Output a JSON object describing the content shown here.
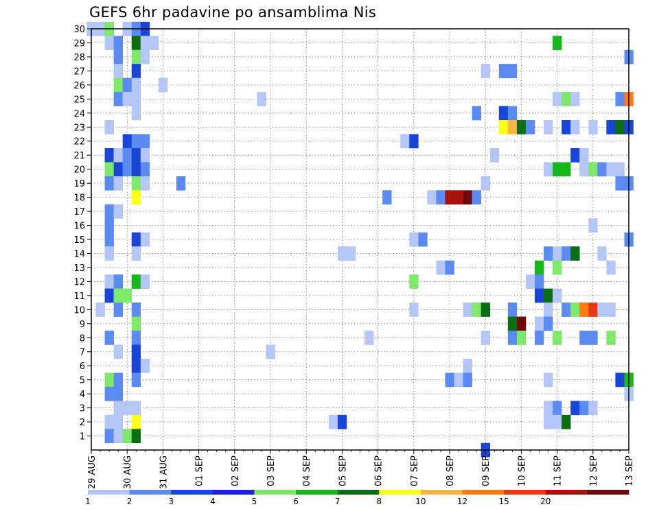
{
  "title": "GEFS 6hr padavine po ansamblima Nis",
  "chart_data": {
    "type": "heatmap",
    "title": "GEFS 6hr padavine po ansamblima Nis",
    "xlabel": "",
    "ylabel": "",
    "x_range_steps": [
      0,
      60
    ],
    "y_range": [
      0,
      30
    ],
    "x_ticks": [
      {
        "step": 0,
        "label": "29 AUG"
      },
      {
        "step": 4,
        "label": "30 AUG"
      },
      {
        "step": 8,
        "label": "31 AUG"
      },
      {
        "step": 12,
        "label": "01 SEP"
      },
      {
        "step": 16,
        "label": "02 SEP"
      },
      {
        "step": 20,
        "label": "03 SEP"
      },
      {
        "step": 24,
        "label": "04 SEP"
      },
      {
        "step": 28,
        "label": "05 SEP"
      },
      {
        "step": 32,
        "label": "06 SEP"
      },
      {
        "step": 36,
        "label": "07 SEP"
      },
      {
        "step": 40,
        "label": "08 SEP"
      },
      {
        "step": 44,
        "label": "09 SEP"
      },
      {
        "step": 48,
        "label": "10 SEP"
      },
      {
        "step": 52,
        "label": "11 SEP"
      },
      {
        "step": 56,
        "label": "12 SEP"
      },
      {
        "step": 60,
        "label": "13 SEP"
      }
    ],
    "y_ticks": [
      1,
      2,
      3,
      4,
      5,
      6,
      7,
      8,
      9,
      10,
      11,
      12,
      13,
      14,
      15,
      16,
      17,
      18,
      19,
      20,
      21,
      22,
      23,
      24,
      25,
      26,
      27,
      28,
      29,
      30
    ],
    "colorbar": {
      "labels": [
        "1",
        "2",
        "3",
        "4",
        "5",
        "6",
        "7",
        "8",
        "10",
        "12",
        "15",
        "20"
      ],
      "colors": [
        "#b3c6f5",
        "#5b8af0",
        "#1a46d8",
        "#1f1fd0",
        "#7de86a",
        "#16b81c",
        "#0b6e12",
        "#ffff14",
        "#ffb340",
        "#ff7a14",
        "#e83a14",
        "#a8120e",
        "#6e0a0a"
      ],
      "boundaries": [
        1,
        2,
        3,
        4,
        5,
        6,
        7,
        8,
        10,
        12,
        15,
        20
      ]
    },
    "cells_comment": "each cell: [member, step(6h from 29 AUG 00z), color class 0-12 (index into colorbar.colors)]",
    "cells": [
      [
        30,
        0,
        0
      ],
      [
        30,
        1,
        0
      ],
      [
        30,
        2,
        4
      ],
      [
        30,
        4,
        0
      ],
      [
        30,
        5,
        1
      ],
      [
        30,
        6,
        2
      ],
      [
        29,
        2,
        0
      ],
      [
        29,
        3,
        1
      ],
      [
        29,
        5,
        6
      ],
      [
        29,
        6,
        0
      ],
      [
        29,
        7,
        0
      ],
      [
        29,
        52,
        5
      ],
      [
        28,
        3,
        1
      ],
      [
        28,
        5,
        4
      ],
      [
        28,
        6,
        0
      ],
      [
        28,
        60,
        1
      ],
      [
        27,
        3,
        0
      ],
      [
        27,
        5,
        2
      ],
      [
        27,
        44,
        0
      ],
      [
        27,
        46,
        1
      ],
      [
        27,
        47,
        1
      ],
      [
        26,
        3,
        4
      ],
      [
        26,
        4,
        1
      ],
      [
        26,
        5,
        0
      ],
      [
        26,
        8,
        0
      ],
      [
        25,
        3,
        1
      ],
      [
        25,
        4,
        0
      ],
      [
        25,
        5,
        0
      ],
      [
        25,
        19,
        0
      ],
      [
        25,
        52,
        0
      ],
      [
        25,
        53,
        4
      ],
      [
        25,
        54,
        0
      ],
      [
        25,
        59,
        1
      ],
      [
        25,
        60,
        9
      ],
      [
        24,
        5,
        0
      ],
      [
        24,
        43,
        1
      ],
      [
        24,
        46,
        2
      ],
      [
        24,
        47,
        1
      ],
      [
        23,
        2,
        0
      ],
      [
        23,
        46,
        7
      ],
      [
        23,
        47,
        8
      ],
      [
        23,
        48,
        6
      ],
      [
        23,
        49,
        1
      ],
      [
        23,
        51,
        0
      ],
      [
        23,
        53,
        2
      ],
      [
        23,
        54,
        0
      ],
      [
        23,
        56,
        0
      ],
      [
        23,
        58,
        2
      ],
      [
        23,
        59,
        6
      ],
      [
        23,
        60,
        2
      ],
      [
        22,
        4,
        2
      ],
      [
        22,
        5,
        1
      ],
      [
        22,
        6,
        1
      ],
      [
        22,
        35,
        0
      ],
      [
        22,
        36,
        2
      ],
      [
        21,
        2,
        2
      ],
      [
        21,
        3,
        0
      ],
      [
        21,
        4,
        1
      ],
      [
        21,
        5,
        2
      ],
      [
        21,
        6,
        0
      ],
      [
        21,
        45,
        0
      ],
      [
        21,
        54,
        2
      ],
      [
        21,
        55,
        0
      ],
      [
        20,
        2,
        4
      ],
      [
        20,
        3,
        2
      ],
      [
        20,
        4,
        1
      ],
      [
        20,
        5,
        2
      ],
      [
        20,
        6,
        1
      ],
      [
        20,
        51,
        0
      ],
      [
        20,
        52,
        5
      ],
      [
        20,
        53,
        5
      ],
      [
        20,
        55,
        0
      ],
      [
        20,
        56,
        4
      ],
      [
        20,
        57,
        1
      ],
      [
        20,
        58,
        0
      ],
      [
        20,
        59,
        0
      ],
      [
        19,
        2,
        1
      ],
      [
        19,
        3,
        0
      ],
      [
        19,
        5,
        4
      ],
      [
        19,
        6,
        0
      ],
      [
        19,
        10,
        1
      ],
      [
        19,
        44,
        0
      ],
      [
        19,
        59,
        1
      ],
      [
        19,
        60,
        1
      ],
      [
        18,
        5,
        7
      ],
      [
        18,
        33,
        1
      ],
      [
        18,
        38,
        0
      ],
      [
        18,
        39,
        1
      ],
      [
        18,
        40,
        11
      ],
      [
        18,
        41,
        11
      ],
      [
        18,
        42,
        12
      ],
      [
        18,
        43,
        1
      ],
      [
        17,
        2,
        1
      ],
      [
        17,
        3,
        0
      ],
      [
        16,
        2,
        1
      ],
      [
        16,
        56,
        0
      ],
      [
        15,
        2,
        1
      ],
      [
        15,
        5,
        2
      ],
      [
        15,
        6,
        0
      ],
      [
        15,
        36,
        0
      ],
      [
        15,
        37,
        1
      ],
      [
        15,
        60,
        1
      ],
      [
        14,
        2,
        0
      ],
      [
        14,
        5,
        0
      ],
      [
        14,
        28,
        0
      ],
      [
        14,
        29,
        0
      ],
      [
        14,
        51,
        1
      ],
      [
        14,
        52,
        0
      ],
      [
        14,
        53,
        1
      ],
      [
        14,
        54,
        6
      ],
      [
        14,
        57,
        0
      ],
      [
        13,
        39,
        0
      ],
      [
        13,
        40,
        1
      ],
      [
        13,
        50,
        5
      ],
      [
        13,
        52,
        4
      ],
      [
        13,
        58,
        0
      ],
      [
        12,
        2,
        0
      ],
      [
        12,
        3,
        1
      ],
      [
        12,
        5,
        5
      ],
      [
        12,
        6,
        0
      ],
      [
        12,
        36,
        4
      ],
      [
        12,
        49,
        0
      ],
      [
        12,
        50,
        1
      ],
      [
        11,
        2,
        2
      ],
      [
        11,
        3,
        4
      ],
      [
        11,
        4,
        4
      ],
      [
        11,
        50,
        2
      ],
      [
        11,
        51,
        6
      ],
      [
        11,
        52,
        0
      ],
      [
        10,
        1,
        0
      ],
      [
        10,
        3,
        1
      ],
      [
        10,
        5,
        1
      ],
      [
        10,
        36,
        0
      ],
      [
        10,
        42,
        0
      ],
      [
        10,
        43,
        4
      ],
      [
        10,
        44,
        6
      ],
      [
        10,
        47,
        1
      ],
      [
        10,
        51,
        0
      ],
      [
        10,
        53,
        1
      ],
      [
        10,
        54,
        4
      ],
      [
        10,
        55,
        9
      ],
      [
        10,
        56,
        10
      ],
      [
        10,
        57,
        0
      ],
      [
        10,
        58,
        0
      ],
      [
        9,
        5,
        4
      ],
      [
        9,
        47,
        6
      ],
      [
        9,
        48,
        12
      ],
      [
        9,
        50,
        0
      ],
      [
        9,
        51,
        1
      ],
      [
        8,
        2,
        1
      ],
      [
        8,
        5,
        1
      ],
      [
        8,
        31,
        0
      ],
      [
        8,
        44,
        0
      ],
      [
        8,
        47,
        1
      ],
      [
        8,
        48,
        4
      ],
      [
        8,
        50,
        1
      ],
      [
        8,
        52,
        4
      ],
      [
        8,
        55,
        1
      ],
      [
        8,
        56,
        1
      ],
      [
        8,
        58,
        4
      ],
      [
        7,
        3,
        0
      ],
      [
        7,
        5,
        2
      ],
      [
        7,
        20,
        0
      ],
      [
        6,
        5,
        2
      ],
      [
        6,
        6,
        0
      ],
      [
        6,
        42,
        0
      ],
      [
        5,
        2,
        4
      ],
      [
        5,
        3,
        1
      ],
      [
        5,
        5,
        1
      ],
      [
        5,
        40,
        1
      ],
      [
        5,
        41,
        0
      ],
      [
        5,
        42,
        1
      ],
      [
        5,
        51,
        0
      ],
      [
        5,
        59,
        2
      ],
      [
        5,
        60,
        5
      ],
      [
        4,
        2,
        1
      ],
      [
        4,
        3,
        1
      ],
      [
        4,
        60,
        0
      ],
      [
        3,
        3,
        0
      ],
      [
        3,
        4,
        0
      ],
      [
        3,
        5,
        0
      ],
      [
        3,
        51,
        0
      ],
      [
        3,
        52,
        1
      ],
      [
        3,
        54,
        2
      ],
      [
        3,
        55,
        1
      ],
      [
        3,
        56,
        0
      ],
      [
        2,
        2,
        0
      ],
      [
        2,
        3,
        0
      ],
      [
        2,
        5,
        7
      ],
      [
        2,
        27,
        0
      ],
      [
        2,
        28,
        2
      ],
      [
        2,
        51,
        0
      ],
      [
        2,
        52,
        0
      ],
      [
        2,
        53,
        6
      ],
      [
        1,
        2,
        1
      ],
      [
        1,
        3,
        0
      ],
      [
        1,
        4,
        4
      ],
      [
        1,
        5,
        6
      ],
      [
        0,
        44,
        2
      ]
    ]
  }
}
